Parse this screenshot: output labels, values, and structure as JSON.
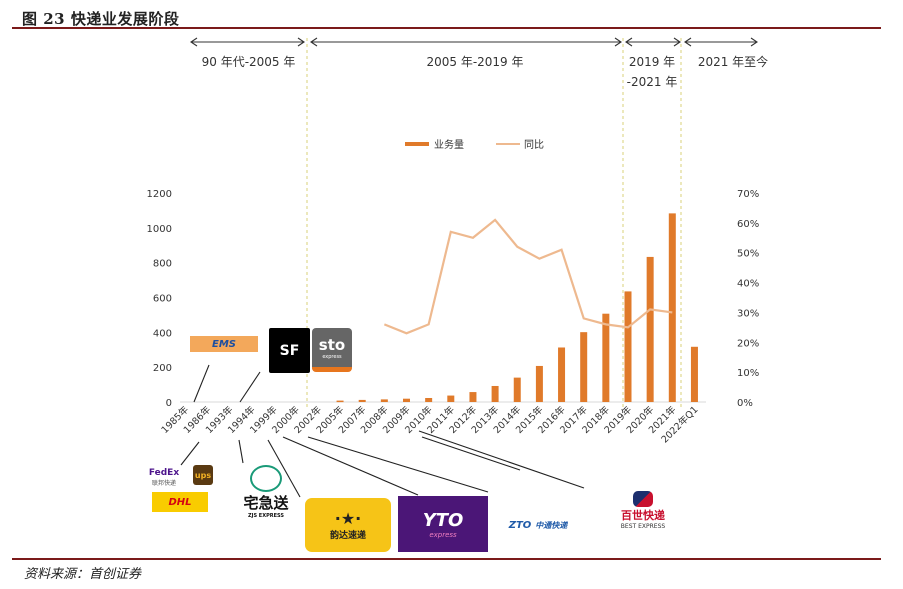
{
  "header": {
    "title": "图 23 快递业发展阶段"
  },
  "footer": {
    "source": "资料来源：首创证券"
  },
  "periods": [
    {
      "label": "90 年代-2005 年"
    },
    {
      "label": "2005 年-2019 年"
    },
    {
      "label": "2019 年 -2021 年"
    },
    {
      "label": "2021 年至今"
    }
  ],
  "legend": {
    "bar": "业务量",
    "line": "同比"
  },
  "logos": {
    "ems": "EMS",
    "sf": "SF",
    "sto": "sto",
    "sto_sub": "express",
    "fedex": "FedEx",
    "fedex_sub": "联邦快递",
    "ups": "ups",
    "dhl": "DHL",
    "zjs": "宅急送",
    "zjs_sub": "ZJS EXPRESS",
    "yunda": "韵达速递",
    "yto": "YTO",
    "yto_sub": "express",
    "zto": "ZTO",
    "zto_sub": "中通快递",
    "best": "百世快递",
    "best_sub": "BEST EXPRESS"
  },
  "colors": {
    "bar": "#e07a2a",
    "line": "#eeb98f",
    "rule": "#7b1a1a",
    "period_divider": "#d8d27a"
  },
  "chart_data": {
    "type": "bar",
    "title": "快递业发展阶段",
    "categories": [
      "1985年",
      "1986年",
      "1993年",
      "1994年",
      "1999年",
      "2000年",
      "2002年",
      "2005年",
      "2007年",
      "2008年",
      "2009年",
      "2010年",
      "2011年",
      "2012年",
      "2013年",
      "2014年",
      "2015年",
      "2016年",
      "2017年",
      "2018年",
      "2019年",
      "2020年",
      "2021年",
      "2022年Q1"
    ],
    "series": [
      {
        "name": "业务量",
        "type": "bar",
        "axis": "left",
        "values": [
          null,
          null,
          null,
          null,
          null,
          null,
          null,
          8,
          12,
          15,
          19,
          23,
          37,
          57,
          92,
          140,
          207,
          313,
          401,
          507,
          635,
          833,
          1083,
          317
        ]
      },
      {
        "name": "同比",
        "type": "line",
        "axis": "right",
        "unit": "%",
        "values": [
          null,
          null,
          null,
          null,
          null,
          null,
          null,
          null,
          null,
          26,
          23,
          26,
          57,
          55,
          61,
          52,
          48,
          51,
          28,
          26,
          25,
          31,
          30,
          null
        ]
      }
    ],
    "ylim_left": [
      0,
      1200
    ],
    "yticks_left": [
      0,
      200,
      400,
      600,
      800,
      1000,
      1200
    ],
    "ylim_right": [
      0,
      70
    ],
    "yticks_right": [
      "0%",
      "10%",
      "20%",
      "30%",
      "40%",
      "50%",
      "60%",
      "70%"
    ],
    "legend_position": "top-center",
    "grid": false,
    "annotations": [
      "90 年代-2005 年",
      "2005 年-2019 年",
      "2019 年-2021 年",
      "2021 年至今"
    ]
  }
}
